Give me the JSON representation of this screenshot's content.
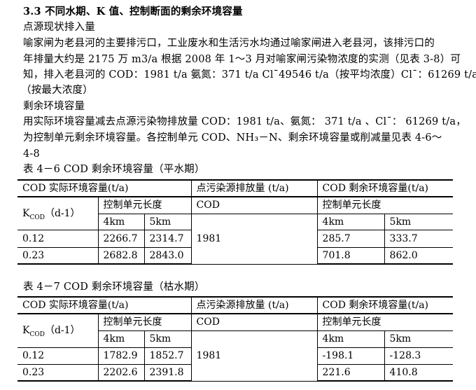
{
  "section_title": "3.3  不同水期、K 值、控制断面的剩余环境容量",
  "paragraphs": {
    "p1_heading": "点源现状排入量",
    "p1_lines": [
      "喻家闸为老县河的主要排污口，工业废水和生活污水均通过喻家闸进入老县河，该排污口的",
      "年排量大约是 2175 万 m3/a 根据 2008 年 1～3 月对喻家闸污染物浓度的实测（见表 3-8）可",
      "知，排入老县河的 COD：1981 t/a  氨氮：371 t/a    Cl¯49546 t/a（按平均浓度）Cl¯：61269 t/a",
      "（按最大浓度）"
    ],
    "p2_heading": "剩余环境容量",
    "p2_lines": [
      "用实际环境容量减去点源污染物排放量 COD：1981 t/a、氨氮：  371 t/a  、Cl¯：  61269 t/a，",
      "为控制单元剩余环境容量。各控制单元  COD、NH₃－N、剩余环境容量或削减量见表  4-6～",
      "4-8"
    ]
  },
  "tables": [
    {
      "caption": "表 4－6 COD 剩余环境容量（平水期）",
      "header": {
        "col1": "COD 实际环境容量(t/a)",
        "col2": "点污染源排放量  (t/a)",
        "col3": "COD 剩余环境容量(t/a)"
      },
      "k_label": "K",
      "k_sub": "COD",
      "k_unit": "（d-1）",
      "ctrl_len": "控制单元长度",
      "cod": "COD",
      "len4": "4km",
      "len5": "5km",
      "emission": "1981",
      "rows": [
        {
          "k": "0.12",
          "a4": "2266.7",
          "a5": "2314.7",
          "r4": "285.7",
          "r5": "333.7"
        },
        {
          "k": "0.23",
          "a4": "2682.8",
          "a5": "2843.0",
          "r4": "701.8",
          "r5": "862.0"
        }
      ]
    },
    {
      "caption": "表 4－7 COD 剩余环境容量（枯水期）",
      "header": {
        "col1": "COD 实际环境容量(t/a)",
        "col2": "点污染源排放量  (t/a)",
        "col3": "COD 剩余环境容量(t/a)"
      },
      "k_label": "K",
      "k_sub": "COD",
      "k_unit": "（d-1）",
      "ctrl_len": "控制单元长度",
      "cod": "COD",
      "len4": "4km",
      "len5": "5km",
      "emission": "1981",
      "rows": [
        {
          "k": "0.12",
          "a4": "1782.9",
          "a5": "1852.7",
          "r4": "-198.1",
          "r5": "-128.3"
        },
        {
          "k": "0.23",
          "a4": "2202.6",
          "a5": "2391.8",
          "r4": "221.6",
          "r5": "410.8"
        }
      ]
    }
  ]
}
